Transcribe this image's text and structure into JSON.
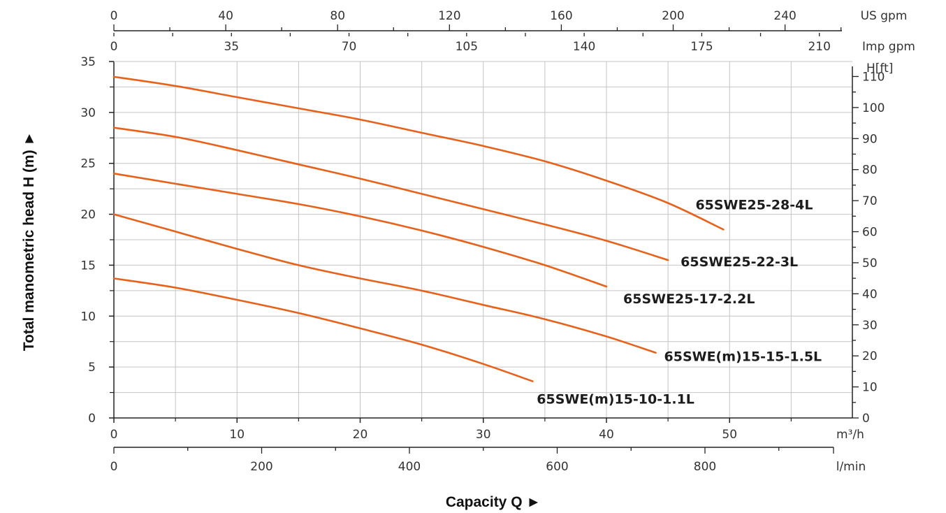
{
  "chart_data": {
    "type": "line",
    "title": "",
    "xlabel": "Capacity Q",
    "ylabel": "Total manometric head H (m)",
    "arrow": "►",
    "xlim": [
      0,
      60
    ],
    "ylim": [
      0,
      35
    ],
    "grid": true,
    "legend": "inline labels at curve ends",
    "colors": {
      "curve": "#e8611a",
      "grid": "#c4c4c4",
      "axis": "#222222"
    },
    "x_ticks": [
      0,
      10,
      20,
      30,
      40,
      50
    ],
    "x_unit": "m³/h",
    "y_ticks": [
      0,
      5,
      10,
      15,
      20,
      25,
      30,
      35
    ],
    "secondary_axes": {
      "us_gpm": {
        "unit": "US gpm",
        "ticks": [
          0,
          40,
          80,
          120,
          160,
          200,
          240
        ]
      },
      "imp_gpm": {
        "unit": "Imp gpm",
        "ticks": [
          0,
          35,
          70,
          105,
          140,
          175,
          210
        ]
      },
      "l_min": {
        "unit": "l/min",
        "ticks": [
          0,
          200,
          400,
          600,
          800
        ]
      },
      "feet": {
        "unit": "H[ft]",
        "ticks": [
          0,
          10,
          20,
          30,
          40,
          50,
          60,
          70,
          80,
          90,
          100,
          110
        ]
      }
    },
    "series": [
      {
        "name": "65SWE25-28-4L",
        "x": [
          0,
          5,
          10,
          15,
          20,
          25,
          30,
          35,
          40,
          45,
          49.5
        ],
        "y": [
          33.5,
          32.6,
          31.5,
          30.4,
          29.3,
          28.0,
          26.7,
          25.2,
          23.3,
          21.1,
          18.5
        ]
      },
      {
        "name": "65SWE25-22-3L",
        "x": [
          0,
          5,
          10,
          15,
          20,
          25,
          30,
          35,
          40,
          45
        ],
        "y": [
          28.5,
          27.6,
          26.3,
          24.9,
          23.5,
          22.0,
          20.5,
          19.0,
          17.4,
          15.5
        ]
      },
      {
        "name": "65SWE25-17-2.2L",
        "x": [
          0,
          5,
          10,
          15,
          20,
          25,
          30,
          35,
          40
        ],
        "y": [
          24.0,
          23.0,
          22.0,
          21.0,
          19.8,
          18.4,
          16.8,
          15.0,
          12.9
        ]
      },
      {
        "name": "65SWE(m)15-15-1.5L",
        "x": [
          0,
          5,
          10,
          15,
          20,
          25,
          30,
          35,
          40,
          44
        ],
        "y": [
          20.0,
          18.3,
          16.6,
          15.0,
          13.7,
          12.5,
          11.1,
          9.7,
          8.0,
          6.4
        ]
      },
      {
        "name": "65SWE(m)15-10-1.1L",
        "x": [
          0,
          5,
          10,
          15,
          20,
          25,
          30,
          34
        ],
        "y": [
          13.7,
          12.8,
          11.6,
          10.3,
          8.8,
          7.2,
          5.3,
          3.6
        ]
      }
    ]
  }
}
